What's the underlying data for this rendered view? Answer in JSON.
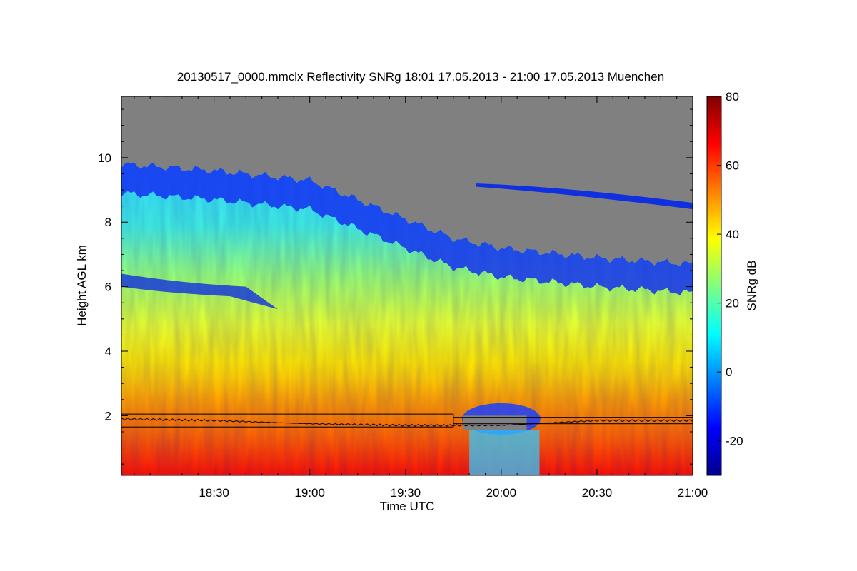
{
  "chart_data": {
    "type": "heatmap",
    "title": "20130517_0000.mmclx Reflectivity SNRg   18:01 17.05.2013 - 21:00 17.05.2013 Muenchen",
    "xlabel": "Time UTC",
    "ylabel": "Height AGL km",
    "colorbar_label": "SNRg dB",
    "xlim": [
      "18:01",
      "21:00"
    ],
    "ylim": [
      0.15,
      11.9
    ],
    "x_ticks": [
      "18:30",
      "19:00",
      "19:30",
      "20:00",
      "20:30",
      "21:00"
    ],
    "y_ticks": [
      "2",
      "4",
      "6",
      "8",
      "10"
    ],
    "colorbar_range": [
      -30,
      80
    ],
    "colorbar_ticks": [
      "-20",
      "0",
      "20",
      "40",
      "60",
      "80"
    ],
    "no_signal_color": "#808080",
    "colormap": [
      "#00008f",
      "#0000ff",
      "#0080ff",
      "#00ffff",
      "#80ff80",
      "#ffff00",
      "#ff8000",
      "#ff0000",
      "#800000"
    ],
    "cloud_top_km": [
      {
        "time": "18:01",
        "height": 9.8
      },
      {
        "time": "18:30",
        "height": 9.6
      },
      {
        "time": "19:00",
        "height": 9.3
      },
      {
        "time": "19:30",
        "height": 8.1
      },
      {
        "time": "19:45",
        "height": 7.5
      },
      {
        "time": "20:00",
        "height": 7.2
      },
      {
        "time": "20:30",
        "height": 6.9
      },
      {
        "time": "21:00",
        "height": 6.7
      }
    ],
    "boundary_layer_km": [
      {
        "time": "18:01",
        "height": 1.9
      },
      {
        "time": "18:30",
        "height": 1.85
      },
      {
        "time": "19:00",
        "height": 1.75
      },
      {
        "time": "19:30",
        "height": 1.7
      },
      {
        "time": "20:00",
        "height": 1.7
      },
      {
        "time": "20:30",
        "height": 1.85
      },
      {
        "time": "21:00",
        "height": 1.85
      }
    ]
  }
}
